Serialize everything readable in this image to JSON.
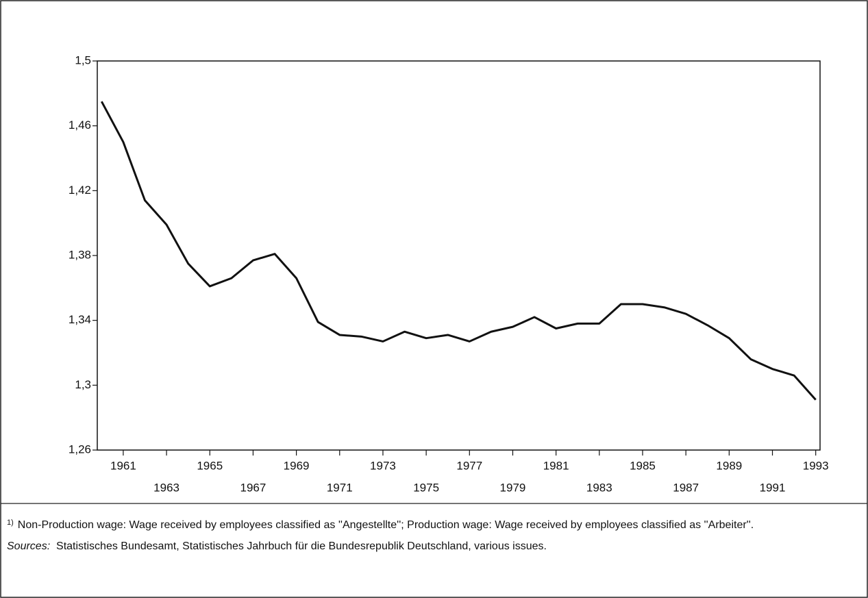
{
  "chart_data": {
    "type": "line",
    "x": [
      1960,
      1961,
      1962,
      1963,
      1964,
      1965,
      1966,
      1967,
      1968,
      1969,
      1970,
      1971,
      1972,
      1973,
      1974,
      1975,
      1976,
      1977,
      1978,
      1979,
      1980,
      1981,
      1982,
      1983,
      1984,
      1985,
      1986,
      1987,
      1988,
      1989,
      1990,
      1991,
      1992,
      1993
    ],
    "series": [
      {
        "color": "#111111",
        "values": [
          1.475,
          1.45,
          1.414,
          1.399,
          1.375,
          1.361,
          1.366,
          1.377,
          1.381,
          1.366,
          1.339,
          1.331,
          1.33,
          1.327,
          1.333,
          1.329,
          1.331,
          1.327,
          1.333,
          1.336,
          1.342,
          1.335,
          1.338,
          1.338,
          1.35,
          1.35,
          1.348,
          1.344,
          1.337,
          1.329,
          1.316,
          1.31,
          1.306,
          1.291
        ]
      }
    ],
    "xlim": [
      1959.8,
      1993.2
    ],
    "xticks": [
      1961,
      1963,
      1965,
      1967,
      1969,
      1971,
      1973,
      1975,
      1977,
      1979,
      1981,
      1983,
      1985,
      1987,
      1989,
      1991,
      1993
    ],
    "ylim": [
      1.26,
      1.5
    ],
    "yticks": [
      {
        "value": 1.26,
        "label": "1,26"
      },
      {
        "value": 1.3,
        "label": "1,3"
      },
      {
        "value": 1.34,
        "label": "1,34"
      },
      {
        "value": 1.38,
        "label": "1,38"
      },
      {
        "value": 1.42,
        "label": "1,42"
      },
      {
        "value": 1.46,
        "label": "1,46"
      },
      {
        "value": 1.5,
        "label": "1,5"
      }
    ],
    "grid": false
  },
  "footnotes": {
    "marker": "1)",
    "note": "Non-Production wage: Wage received by employees classified as ''Angestellte''; Production wage: Wage received by employees classified as ''Arbeiter''.",
    "sources_label": "Sources:",
    "sources": "Statistisches Bundesamt, Statistisches Jahrbuch für die Bundesrepublik Deutschland, various issues."
  }
}
